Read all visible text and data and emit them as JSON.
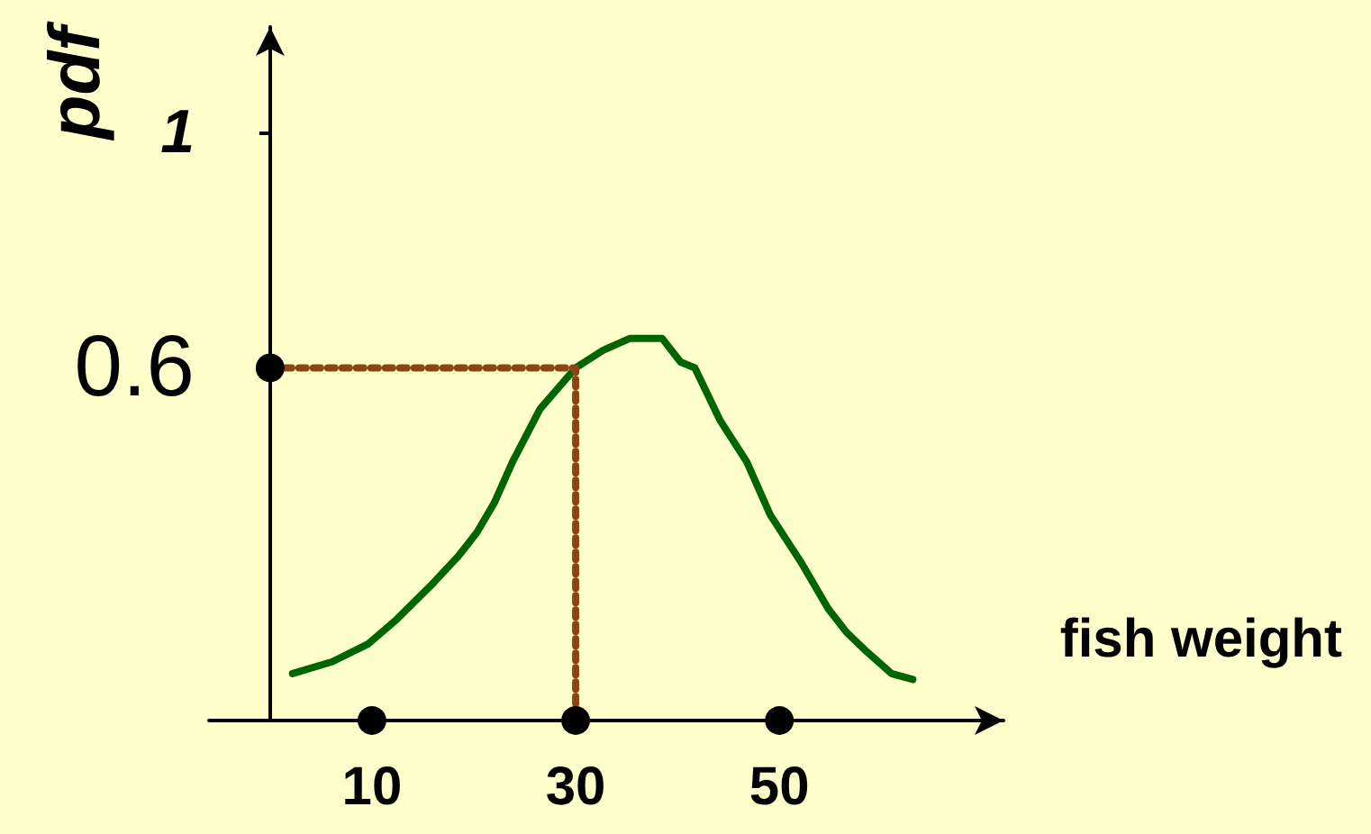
{
  "chart_data": {
    "type": "line",
    "xlabel": "fish weight",
    "ylabel": "pdf",
    "xlim": [
      -6,
      72
    ],
    "xticks": [
      10,
      30,
      50
    ],
    "ylim": [
      0,
      1.18
    ],
    "yticks": [
      0.6,
      1
    ],
    "grid": false,
    "series": [
      {
        "color": "#006400",
        "marker": "none",
        "line_style": "solid",
        "x": [
          2.2,
          6.1,
          9.6,
          12.3,
          15.8,
          18.5,
          20.3,
          22.0,
          23.8,
          26.5,
          30,
          32.7,
          35.3,
          38.5,
          40.3,
          41.7,
          44.2,
          46.8,
          49.1,
          52.1,
          54.8,
          56.6,
          58.4,
          61.0,
          63.1
        ],
        "values": [
          0.08,
          0.1,
          0.13,
          0.17,
          0.23,
          0.28,
          0.32,
          0.37,
          0.44,
          0.53,
          0.6,
          0.63,
          0.65,
          0.65,
          0.61,
          0.6,
          0.51,
          0.44,
          0.35,
          0.27,
          0.19,
          0.15,
          0.12,
          0.08,
          0.07
        ]
      },
      {
        "type": "line",
        "color": "#8b4513",
        "marker": "none",
        "line_style": "dotted",
        "x": [
          0,
          30,
          30
        ],
        "values": [
          0.6,
          0.6,
          0
        ]
      },
      {
        "type": "scatter",
        "color": "#000000",
        "marker": "circle",
        "x": [
          0,
          10,
          30,
          50
        ],
        "values": [
          0.6,
          0,
          0,
          0
        ]
      }
    ]
  }
}
